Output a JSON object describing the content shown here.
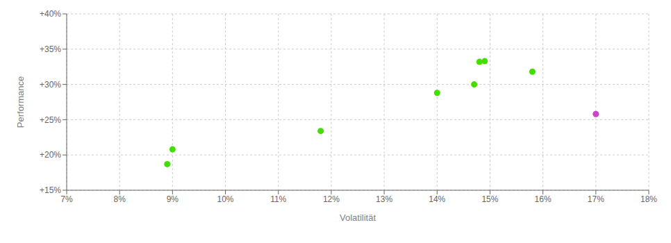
{
  "chart_data": {
    "type": "scatter",
    "xlabel": "Volatilität",
    "ylabel": "Performance",
    "xlim": [
      0.07,
      0.18
    ],
    "ylim": [
      0.15,
      0.4
    ],
    "xticks": [
      {
        "value": 0.07,
        "label": "7%"
      },
      {
        "value": 0.08,
        "label": "8%"
      },
      {
        "value": 0.09,
        "label": "9%"
      },
      {
        "value": 0.1,
        "label": "10%"
      },
      {
        "value": 0.11,
        "label": "11%"
      },
      {
        "value": 0.12,
        "label": "12%"
      },
      {
        "value": 0.13,
        "label": "13%"
      },
      {
        "value": 0.14,
        "label": "14%"
      },
      {
        "value": 0.15,
        "label": "15%"
      },
      {
        "value": 0.16,
        "label": "16%"
      },
      {
        "value": 0.17,
        "label": "17%"
      },
      {
        "value": 0.18,
        "label": "18%"
      }
    ],
    "yticks": [
      {
        "value": 0.15,
        "label": "+15%"
      },
      {
        "value": 0.2,
        "label": "+20%"
      },
      {
        "value": 0.25,
        "label": "+25%"
      },
      {
        "value": 0.3,
        "label": "+30%"
      },
      {
        "value": 0.35,
        "label": "+35%"
      },
      {
        "value": 0.4,
        "label": "+40%"
      }
    ],
    "grid": true,
    "series": [
      {
        "color": "#44dd00",
        "x": [
          0.09,
          0.089,
          0.118,
          0.14,
          0.147,
          0.148,
          0.149,
          0.158
        ],
        "values": [
          0.208,
          0.187,
          0.234,
          0.288,
          0.3,
          0.332,
          0.333,
          0.318
        ]
      },
      {
        "color": "#cc44cc",
        "x": [
          0.17
        ],
        "values": [
          0.258
        ]
      }
    ]
  }
}
